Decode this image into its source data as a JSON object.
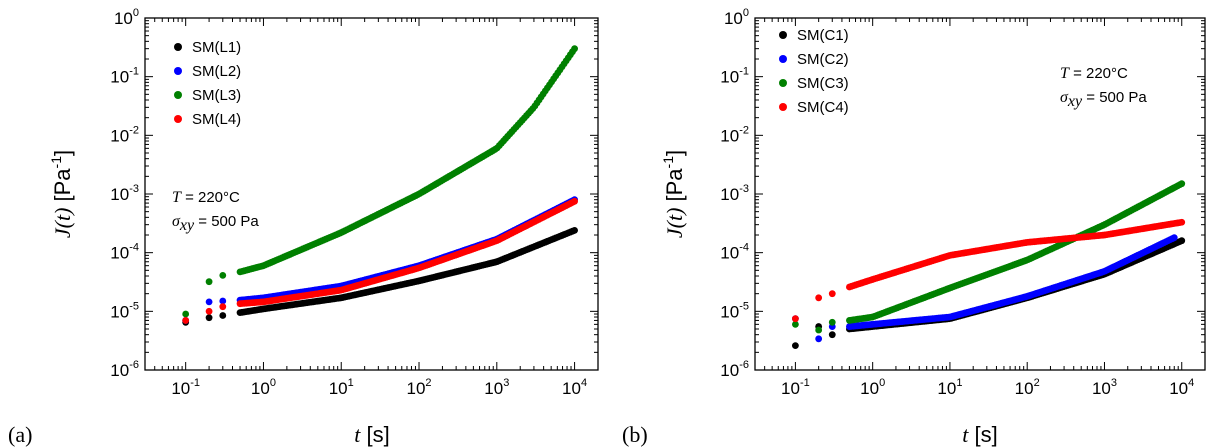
{
  "chart_data": [
    {
      "type": "scatter",
      "panel_label": "(a)",
      "xlabel": {
        "var": "t",
        "unit": "[s]"
      },
      "ylabel": {
        "var": "J",
        "arg": "(t)",
        "unit": "[Pa",
        "unit_exp": "-1",
        "unit_close": "]"
      },
      "x_scale": "log",
      "y_scale": "log",
      "xlim": [
        0.03,
        20000
      ],
      "ylim": [
        1e-06,
        1
      ],
      "x_ticks": [
        {
          "base": "10",
          "exp": "-1"
        },
        {
          "base": "10",
          "exp": "0"
        },
        {
          "base": "10",
          "exp": "1"
        },
        {
          "base": "10",
          "exp": "2"
        },
        {
          "base": "10",
          "exp": "3"
        },
        {
          "base": "10",
          "exp": "4"
        }
      ],
      "y_ticks": [
        {
          "base": "10",
          "exp": "-6"
        },
        {
          "base": "10",
          "exp": "-5"
        },
        {
          "base": "10",
          "exp": "-4"
        },
        {
          "base": "10",
          "exp": "-3"
        },
        {
          "base": "10",
          "exp": "-2"
        },
        {
          "base": "10",
          "exp": "-1"
        },
        {
          "base": "10",
          "exp": "0"
        }
      ],
      "legend_position": "top-left",
      "conditions": {
        "position": "left",
        "temp_symbol": "T",
        "temp_value": "= 220°C",
        "stress_symbol": "σ",
        "stress_sub": "xy",
        "stress_value": "= 500 Pa"
      },
      "series": [
        {
          "name": "SM(L1)",
          "color": "#000000",
          "points": [
            [
              0.1,
              6.5e-06
            ],
            [
              0.2,
              7.8e-06
            ],
            [
              0.3,
              8.5e-06
            ],
            [
              0.5,
              9.5e-06
            ],
            [
              1,
              1.1e-05
            ],
            [
              10,
              1.7e-05
            ],
            [
              100,
              3.3e-05
            ],
            [
              1000,
              7e-05
            ],
            [
              10000,
              0.00024
            ]
          ]
        },
        {
          "name": "SM(L2)",
          "color": "#0000ff",
          "points": [
            [
              0.1,
              7e-06
            ],
            [
              0.2,
              1.45e-05
            ],
            [
              0.3,
              1.5e-05
            ],
            [
              0.5,
              1.55e-05
            ],
            [
              1,
              1.7e-05
            ],
            [
              10,
              2.7e-05
            ],
            [
              100,
              6e-05
            ],
            [
              1000,
              0.00017
            ],
            [
              10000,
              0.0008
            ]
          ]
        },
        {
          "name": "SM(L3)",
          "color": "#008000",
          "points": [
            [
              0.1,
              9e-06
            ],
            [
              0.2,
              3.2e-05
            ],
            [
              0.3,
              4.1e-05
            ],
            [
              0.5,
              4.7e-05
            ],
            [
              1,
              6e-05
            ],
            [
              10,
              0.00022
            ],
            [
              100,
              0.001
            ],
            [
              1000,
              0.006
            ],
            [
              3000,
              0.03
            ],
            [
              10000,
              0.3
            ]
          ]
        },
        {
          "name": "SM(L4)",
          "color": "#ff0000",
          "points": [
            [
              0.1,
              7e-06
            ],
            [
              0.2,
              1e-05
            ],
            [
              0.3,
              1.2e-05
            ],
            [
              0.5,
              1.35e-05
            ],
            [
              1,
              1.45e-05
            ],
            [
              10,
              2.3e-05
            ],
            [
              100,
              5.5e-05
            ],
            [
              1000,
              0.00016
            ],
            [
              10000,
              0.00075
            ]
          ]
        }
      ]
    },
    {
      "type": "scatter",
      "panel_label": "(b)",
      "xlabel": {
        "var": "t",
        "unit": "[s]"
      },
      "ylabel": {
        "var": "J",
        "arg": "(t)",
        "unit": "[Pa",
        "unit_exp": "-1",
        "unit_close": "]"
      },
      "x_scale": "log",
      "y_scale": "log",
      "xlim": [
        0.03,
        20000
      ],
      "ylim": [
        1e-06,
        1
      ],
      "x_ticks": [
        {
          "base": "10",
          "exp": "-1"
        },
        {
          "base": "10",
          "exp": "0"
        },
        {
          "base": "10",
          "exp": "1"
        },
        {
          "base": "10",
          "exp": "2"
        },
        {
          "base": "10",
          "exp": "3"
        },
        {
          "base": "10",
          "exp": "4"
        }
      ],
      "y_ticks": [
        {
          "base": "10",
          "exp": "-6"
        },
        {
          "base": "10",
          "exp": "-5"
        },
        {
          "base": "10",
          "exp": "-4"
        },
        {
          "base": "10",
          "exp": "-3"
        },
        {
          "base": "10",
          "exp": "-2"
        },
        {
          "base": "10",
          "exp": "-1"
        },
        {
          "base": "10",
          "exp": "0"
        }
      ],
      "legend_position": "top-left",
      "conditions": {
        "position": "top-right",
        "temp_symbol": "T",
        "temp_value": "= 220°C",
        "stress_symbol": "σ",
        "stress_sub": "xy",
        "stress_value": "= 500 Pa"
      },
      "series": [
        {
          "name": "SM(C1)",
          "color": "#000000",
          "points": [
            [
              0.1,
              2.6e-06
            ],
            [
              0.2,
              5.5e-06
            ],
            [
              0.3,
              4e-06
            ],
            [
              0.5,
              5e-06
            ],
            [
              1,
              5.5e-06
            ],
            [
              10,
              7.5e-06
            ],
            [
              100,
              1.7e-05
            ],
            [
              1000,
              4.3e-05
            ],
            [
              10000,
              0.00016
            ]
          ]
        },
        {
          "name": "SM(C2)",
          "color": "#0000ff",
          "points": [
            [
              0.1,
              7.5e-06
            ],
            [
              0.2,
              3.4e-06
            ],
            [
              0.3,
              5.5e-06
            ],
            [
              0.5,
              5.5e-06
            ],
            [
              1,
              6e-06
            ],
            [
              10,
              8e-06
            ],
            [
              100,
              1.8e-05
            ],
            [
              1000,
              4.8e-05
            ],
            [
              8000,
              0.00018
            ]
          ]
        },
        {
          "name": "SM(C3)",
          "color": "#008000",
          "points": [
            [
              0.1,
              6e-06
            ],
            [
              0.2,
              4.8e-06
            ],
            [
              0.3,
              6.5e-06
            ],
            [
              0.5,
              7e-06
            ],
            [
              1,
              8e-06
            ],
            [
              10,
              2.5e-05
            ],
            [
              100,
              7.5e-05
            ],
            [
              1000,
              0.0003
            ],
            [
              10000,
              0.0015
            ]
          ]
        },
        {
          "name": "SM(C4)",
          "color": "#ff0000",
          "points": [
            [
              0.1,
              7.5e-06
            ],
            [
              0.2,
              1.7e-05
            ],
            [
              0.3,
              2e-05
            ],
            [
              0.5,
              2.6e-05
            ],
            [
              1,
              3.5e-05
            ],
            [
              10,
              9e-05
            ],
            [
              100,
              0.00015
            ],
            [
              1000,
              0.0002
            ],
            [
              10000,
              0.00033
            ]
          ]
        }
      ]
    }
  ]
}
